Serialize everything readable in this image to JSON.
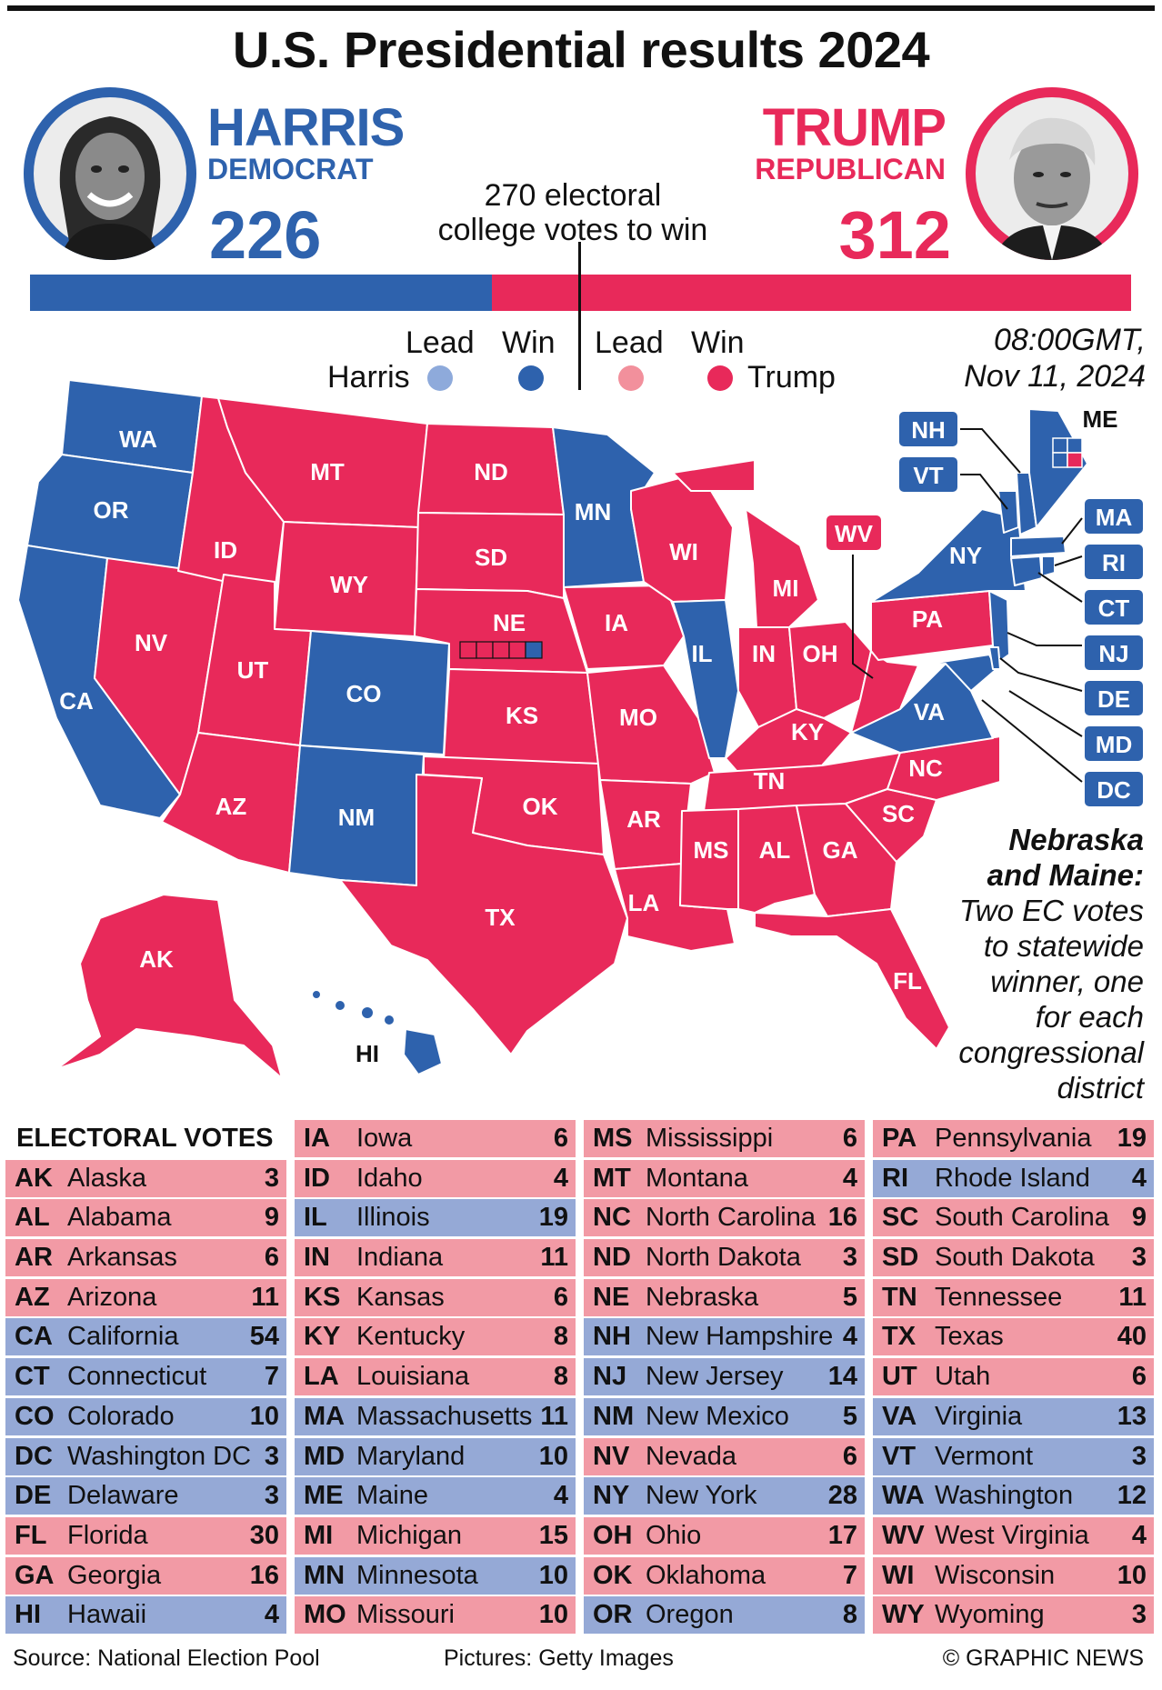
{
  "title": "U.S. Presidential results 2024",
  "harris": {
    "name": "HARRIS",
    "party": "DEMOCRAT",
    "votes": "226"
  },
  "trump": {
    "name": "TRUMP",
    "party": "REPUBLICAN",
    "votes": "312"
  },
  "threshold_line1": "270 electoral",
  "threshold_line2": "college votes to win",
  "legend": {
    "lead": "Lead",
    "win": "Win",
    "harris": "Harris",
    "trump": "Trump"
  },
  "timestamp_line1": "08:00GMT,",
  "timestamp_line2": "Nov 11, 2024",
  "colors": {
    "dem": "#2e62ad",
    "rep": "#e8295a",
    "dem_lead": "#8eaadb",
    "rep_lead": "#f2909c",
    "dem_row": "#95a9d6",
    "rep_row": "#f29aa5"
  },
  "map": {
    "labels": {
      "WA": "WA",
      "OR": "OR",
      "CA": "CA",
      "NV": "NV",
      "ID": "ID",
      "MT": "MT",
      "WY": "WY",
      "UT": "UT",
      "AZ": "AZ",
      "CO": "CO",
      "NM": "NM",
      "ND": "ND",
      "SD": "SD",
      "NE": "NE",
      "KS": "KS",
      "OK": "OK",
      "TX": "TX",
      "MN": "MN",
      "IA": "IA",
      "MO": "MO",
      "AR": "AR",
      "LA": "LA",
      "WI": "WI",
      "IL": "IL",
      "MI": "MI",
      "IN": "IN",
      "OH": "OH",
      "KY": "KY",
      "TN": "TN",
      "MS": "MS",
      "AL": "AL",
      "GA": "GA",
      "FL": "FL",
      "SC": "SC",
      "NC": "NC",
      "VA": "VA",
      "PA": "PA",
      "NY": "NY",
      "AK": "AK",
      "HI": "HI",
      "ME": "ME",
      "NH": "NH",
      "VT": "VT",
      "MA": "MA",
      "RI": "RI",
      "CT": "CT",
      "NJ": "NJ",
      "DE": "DE",
      "MD": "MD",
      "DC": "DC",
      "WV": "WV"
    }
  },
  "ne_me_note": {
    "title_line1": "Nebraska",
    "title_line2": "and Maine:",
    "body": [
      "Two EC votes",
      "to statewide",
      "winner, one",
      "for each",
      "congressional",
      "district"
    ]
  },
  "ev_header": "ELECTORAL VOTES",
  "ev_columns": [
    [
      {
        "abbr": "AK",
        "name": "Alaska",
        "votes": "3",
        "party": "r"
      },
      {
        "abbr": "AL",
        "name": "Alabama",
        "votes": "9",
        "party": "r"
      },
      {
        "abbr": "AR",
        "name": "Arkansas",
        "votes": "6",
        "party": "r"
      },
      {
        "abbr": "AZ",
        "name": "Arizona",
        "votes": "11",
        "party": "r"
      },
      {
        "abbr": "CA",
        "name": "California",
        "votes": "54",
        "party": "d"
      },
      {
        "abbr": "CT",
        "name": "Connecticut",
        "votes": "7",
        "party": "d"
      },
      {
        "abbr": "CO",
        "name": "Colorado",
        "votes": "10",
        "party": "d"
      },
      {
        "abbr": "DC",
        "name": "Washington DC",
        "votes": "3",
        "party": "d"
      },
      {
        "abbr": "DE",
        "name": "Delaware",
        "votes": "3",
        "party": "d"
      },
      {
        "abbr": "FL",
        "name": "Florida",
        "votes": "30",
        "party": "r"
      },
      {
        "abbr": "GA",
        "name": "Georgia",
        "votes": "16",
        "party": "r"
      },
      {
        "abbr": "HI",
        "name": "Hawaii",
        "votes": "4",
        "party": "d"
      }
    ],
    [
      {
        "abbr": "IA",
        "name": "Iowa",
        "votes": "6",
        "party": "r"
      },
      {
        "abbr": "ID",
        "name": "Idaho",
        "votes": "4",
        "party": "r"
      },
      {
        "abbr": "IL",
        "name": "Illinois",
        "votes": "19",
        "party": "d"
      },
      {
        "abbr": "IN",
        "name": "Indiana",
        "votes": "11",
        "party": "r"
      },
      {
        "abbr": "KS",
        "name": "Kansas",
        "votes": "6",
        "party": "r"
      },
      {
        "abbr": "KY",
        "name": "Kentucky",
        "votes": "8",
        "party": "r"
      },
      {
        "abbr": "LA",
        "name": "Louisiana",
        "votes": "8",
        "party": "r"
      },
      {
        "abbr": "MA",
        "name": "Massachusetts",
        "votes": "11",
        "party": "d"
      },
      {
        "abbr": "MD",
        "name": "Maryland",
        "votes": "10",
        "party": "d"
      },
      {
        "abbr": "ME",
        "name": "Maine",
        "votes": "4",
        "party": "d"
      },
      {
        "abbr": "MI",
        "name": "Michigan",
        "votes": "15",
        "party": "r"
      },
      {
        "abbr": "MN",
        "name": "Minnesota",
        "votes": "10",
        "party": "d"
      },
      {
        "abbr": "MO",
        "name": "Missouri",
        "votes": "10",
        "party": "r"
      }
    ],
    [
      {
        "abbr": "MS",
        "name": "Mississippi",
        "votes": "6",
        "party": "r"
      },
      {
        "abbr": "MT",
        "name": "Montana",
        "votes": "4",
        "party": "r"
      },
      {
        "abbr": "NC",
        "name": "North Carolina",
        "votes": "16",
        "party": "r"
      },
      {
        "abbr": "ND",
        "name": "North Dakota",
        "votes": "3",
        "party": "r"
      },
      {
        "abbr": "NE",
        "name": "Nebraska",
        "votes": "5",
        "party": "r"
      },
      {
        "abbr": "NH",
        "name": "New Hampshire",
        "votes": "4",
        "party": "d"
      },
      {
        "abbr": "NJ",
        "name": "New Jersey",
        "votes": "14",
        "party": "d"
      },
      {
        "abbr": "NM",
        "name": "New Mexico",
        "votes": "5",
        "party": "d"
      },
      {
        "abbr": "NV",
        "name": "Nevada",
        "votes": "6",
        "party": "r"
      },
      {
        "abbr": "NY",
        "name": "New York",
        "votes": "28",
        "party": "d"
      },
      {
        "abbr": "OH",
        "name": "Ohio",
        "votes": "17",
        "party": "r"
      },
      {
        "abbr": "OK",
        "name": "Oklahoma",
        "votes": "7",
        "party": "r"
      },
      {
        "abbr": "OR",
        "name": "Oregon",
        "votes": "8",
        "party": "d"
      }
    ],
    [
      {
        "abbr": "PA",
        "name": "Pennsylvania",
        "votes": "19",
        "party": "r"
      },
      {
        "abbr": "RI",
        "name": "Rhode Island",
        "votes": "4",
        "party": "d"
      },
      {
        "abbr": "SC",
        "name": "South Carolina",
        "votes": "9",
        "party": "r"
      },
      {
        "abbr": "SD",
        "name": "South Dakota",
        "votes": "3",
        "party": "r"
      },
      {
        "abbr": "TN",
        "name": "Tennessee",
        "votes": "11",
        "party": "r"
      },
      {
        "abbr": "TX",
        "name": "Texas",
        "votes": "40",
        "party": "r"
      },
      {
        "abbr": "UT",
        "name": "Utah",
        "votes": "6",
        "party": "r"
      },
      {
        "abbr": "VA",
        "name": "Virginia",
        "votes": "13",
        "party": "d"
      },
      {
        "abbr": "VT",
        "name": "Vermont",
        "votes": "3",
        "party": "d"
      },
      {
        "abbr": "WA",
        "name": "Washington",
        "votes": "12",
        "party": "d"
      },
      {
        "abbr": "WV",
        "name": "West Virginia",
        "votes": "4",
        "party": "r"
      },
      {
        "abbr": "WI",
        "name": "Wisconsin",
        "votes": "10",
        "party": "r"
      },
      {
        "abbr": "WY",
        "name": "Wyoming",
        "votes": "3",
        "party": "r"
      }
    ]
  ],
  "footer": {
    "source": "Source: National Election Pool",
    "pictures": "Pictures: Getty Images",
    "credit": "© GRAPHIC NEWS"
  }
}
